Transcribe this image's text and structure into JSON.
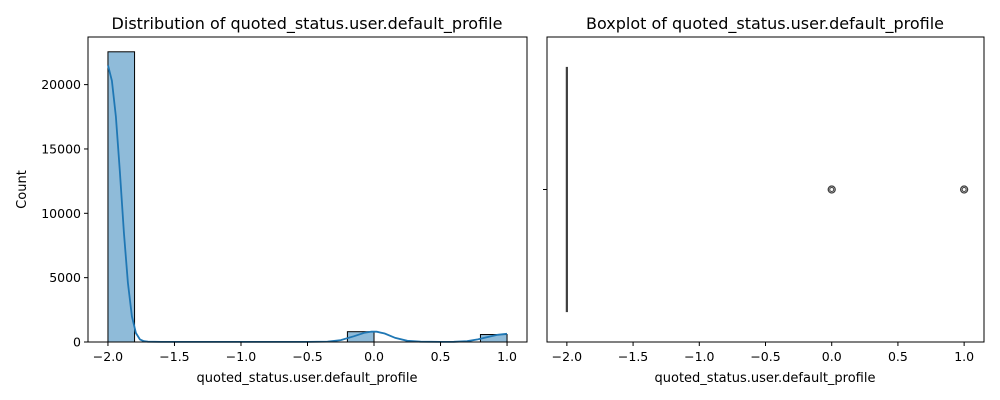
{
  "chart_data": [
    {
      "type": "bar",
      "title": "Distribution of quoted_status.user.default_profile",
      "xlabel": "quoted_status.user.default_profile",
      "ylabel": "Count",
      "xlim": [
        -2.15,
        1.15
      ],
      "ylim": [
        0,
        23700
      ],
      "x_ticks": [
        -2.0,
        -1.5,
        -1.0,
        -0.5,
        0.0,
        0.5,
        1.0
      ],
      "x_tick_labels": [
        "−2.0",
        "−1.5",
        "−1.0",
        "−0.5",
        "0.0",
        "0.5",
        "1.0"
      ],
      "y_ticks": [
        0,
        5000,
        10000,
        15000,
        20000
      ],
      "y_tick_labels": [
        "0",
        "5000",
        "10000",
        "15000",
        "20000"
      ],
      "bins": [
        {
          "x0": -2.0,
          "x1": -1.8,
          "count": 22550
        },
        {
          "x0": -0.2,
          "x1": 0.0,
          "count": 800
        },
        {
          "x0": 0.8,
          "x1": 1.0,
          "count": 580
        }
      ],
      "kde": [
        [
          -2.0,
          21500
        ],
        [
          -1.97,
          20300
        ],
        [
          -1.94,
          17500
        ],
        [
          -1.91,
          13200
        ],
        [
          -1.88,
          8500
        ],
        [
          -1.85,
          4600
        ],
        [
          -1.82,
          2000
        ],
        [
          -1.79,
          700
        ],
        [
          -1.76,
          200
        ],
        [
          -1.73,
          60
        ],
        [
          -1.7,
          20
        ],
        [
          -1.6,
          10
        ],
        [
          -1.4,
          10
        ],
        [
          -1.0,
          10
        ],
        [
          -0.5,
          10
        ],
        [
          -0.35,
          30
        ],
        [
          -0.25,
          150
        ],
        [
          -0.15,
          450
        ],
        [
          -0.07,
          720
        ],
        [
          -0.02,
          810
        ],
        [
          0.02,
          800
        ],
        [
          0.08,
          660
        ],
        [
          0.16,
          320
        ],
        [
          0.25,
          90
        ],
        [
          0.35,
          20
        ],
        [
          0.5,
          10
        ],
        [
          0.6,
          15
        ],
        [
          0.7,
          60
        ],
        [
          0.78,
          200
        ],
        [
          0.86,
          400
        ],
        [
          0.93,
          560
        ],
        [
          1.0,
          640
        ]
      ],
      "bar_color": "#1f77b4",
      "line_color": "#1f77b4",
      "grid": false
    },
    {
      "type": "boxplot",
      "title": "Boxplot of quoted_status.user.default_profile",
      "xlabel": "quoted_status.user.default_profile",
      "xlim": [
        -2.15,
        1.15
      ],
      "x_ticks": [
        -2.0,
        -1.5,
        -1.0,
        -0.5,
        0.0,
        0.5,
        1.0
      ],
      "x_tick_labels": [
        "−2.0",
        "−1.5",
        "−1.0",
        "−0.5",
        "0.0",
        "0.5",
        "1.0"
      ],
      "box": {
        "q1": -2.0,
        "median": -2.0,
        "q3": -2.0,
        "whisker_low": -2.0,
        "whisker_high": -2.0
      },
      "outliers": [
        0.0,
        1.0
      ],
      "grid": false
    }
  ]
}
